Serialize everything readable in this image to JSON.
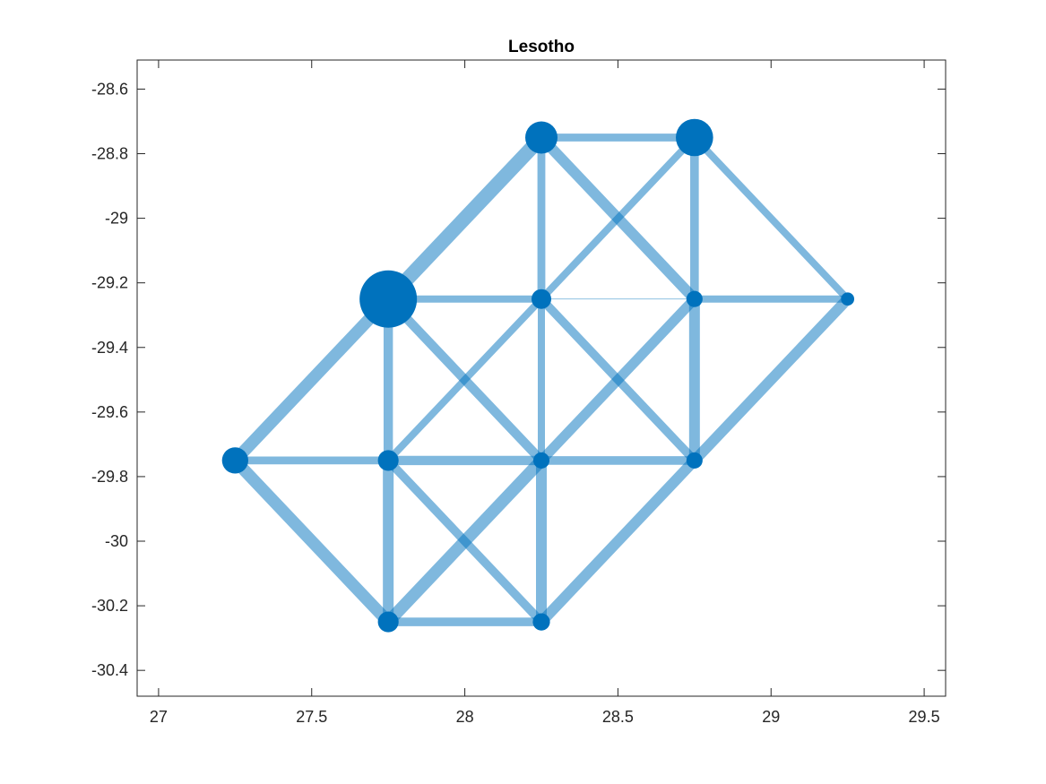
{
  "chart_data": {
    "type": "scatter",
    "title": "Lesotho",
    "xlabel": "",
    "ylabel": "",
    "xlim": [
      26.93,
      29.57
    ],
    "ylim": [
      -30.48,
      -28.51
    ],
    "x_ticks": [
      27,
      27.5,
      28,
      28.5,
      29,
      29.5
    ],
    "x_tick_labels": [
      "27",
      "27.5",
      "28",
      "28.5",
      "29",
      "29.5"
    ],
    "y_ticks": [
      -28.6,
      -28.8,
      -29,
      -29.2,
      -29.4,
      -29.6,
      -29.8,
      -30,
      -30.2,
      -30.4
    ],
    "y_tick_labels": [
      "-28.6",
      "-28.8",
      "-29",
      "-29.2",
      "-29.4",
      "-29.6",
      "-29.8",
      "-30",
      "-30.2",
      "-30.4"
    ],
    "grid": false,
    "colors": {
      "node": "#0072BD",
      "edge": "#0072BD",
      "edge_opacity": 0.5,
      "axis": "#262626"
    },
    "nodes": [
      {
        "x": 28.25,
        "y": -28.75,
        "weight": 0.5
      },
      {
        "x": 28.75,
        "y": -28.75,
        "weight": 0.6
      },
      {
        "x": 27.75,
        "y": -29.25,
        "weight": 1.0
      },
      {
        "x": 28.25,
        "y": -29.25,
        "weight": 0.25
      },
      {
        "x": 28.75,
        "y": -29.25,
        "weight": 0.18
      },
      {
        "x": 29.25,
        "y": -29.25,
        "weight": 0.12
      },
      {
        "x": 27.25,
        "y": -29.75,
        "weight": 0.38
      },
      {
        "x": 27.75,
        "y": -29.75,
        "weight": 0.27
      },
      {
        "x": 28.25,
        "y": -29.75,
        "weight": 0.18
      },
      {
        "x": 28.75,
        "y": -29.75,
        "weight": 0.18
      },
      {
        "x": 27.75,
        "y": -30.25,
        "weight": 0.27
      },
      {
        "x": 28.25,
        "y": -30.25,
        "weight": 0.2
      }
    ],
    "edges": [
      {
        "from": [
          28.25,
          -28.75
        ],
        "to": [
          28.75,
          -28.75
        ],
        "weight": 0.55
      },
      {
        "from": [
          27.75,
          -29.25
        ],
        "to": [
          28.25,
          -28.75
        ],
        "weight": 1.0
      },
      {
        "from": [
          28.25,
          -28.75
        ],
        "to": [
          28.25,
          -29.25
        ],
        "weight": 0.55
      },
      {
        "from": [
          28.25,
          -28.75
        ],
        "to": [
          28.75,
          -29.25
        ],
        "weight": 0.75
      },
      {
        "from": [
          28.75,
          -28.75
        ],
        "to": [
          28.25,
          -29.25
        ],
        "weight": 0.5
      },
      {
        "from": [
          28.75,
          -28.75
        ],
        "to": [
          28.75,
          -29.25
        ],
        "weight": 0.6
      },
      {
        "from": [
          28.75,
          -28.75
        ],
        "to": [
          29.25,
          -29.25
        ],
        "weight": 0.5
      },
      {
        "from": [
          27.75,
          -29.25
        ],
        "to": [
          28.25,
          -29.25
        ],
        "weight": 0.5
      },
      {
        "from": [
          28.25,
          -29.25
        ],
        "to": [
          28.75,
          -29.25
        ],
        "weight": 0.05
      },
      {
        "from": [
          28.75,
          -29.25
        ],
        "to": [
          29.25,
          -29.25
        ],
        "weight": 0.5
      },
      {
        "from": [
          27.75,
          -29.25
        ],
        "to": [
          27.25,
          -29.75
        ],
        "weight": 0.85
      },
      {
        "from": [
          27.75,
          -29.25
        ],
        "to": [
          27.75,
          -29.75
        ],
        "weight": 0.65
      },
      {
        "from": [
          27.75,
          -29.25
        ],
        "to": [
          28.25,
          -29.75
        ],
        "weight": 0.65
      },
      {
        "from": [
          28.25,
          -29.25
        ],
        "to": [
          27.75,
          -29.75
        ],
        "weight": 0.5
      },
      {
        "from": [
          28.25,
          -29.25
        ],
        "to": [
          28.25,
          -29.75
        ],
        "weight": 0.5
      },
      {
        "from": [
          28.25,
          -29.25
        ],
        "to": [
          28.75,
          -29.75
        ],
        "weight": 0.6
      },
      {
        "from": [
          28.75,
          -29.25
        ],
        "to": [
          28.25,
          -29.75
        ],
        "weight": 0.7
      },
      {
        "from": [
          28.75,
          -29.25
        ],
        "to": [
          28.75,
          -29.75
        ],
        "weight": 0.75
      },
      {
        "from": [
          29.25,
          -29.25
        ],
        "to": [
          28.75,
          -29.75
        ],
        "weight": 0.75
      },
      {
        "from": [
          27.25,
          -29.75
        ],
        "to": [
          27.75,
          -29.75
        ],
        "weight": 0.55
      },
      {
        "from": [
          27.75,
          -29.75
        ],
        "to": [
          28.25,
          -29.75
        ],
        "weight": 0.65
      },
      {
        "from": [
          28.25,
          -29.75
        ],
        "to": [
          28.75,
          -29.75
        ],
        "weight": 0.6
      },
      {
        "from": [
          27.25,
          -29.75
        ],
        "to": [
          27.75,
          -30.25
        ],
        "weight": 0.85
      },
      {
        "from": [
          27.75,
          -29.75
        ],
        "to": [
          27.75,
          -30.25
        ],
        "weight": 0.75
      },
      {
        "from": [
          27.75,
          -29.75
        ],
        "to": [
          28.25,
          -30.25
        ],
        "weight": 0.6
      },
      {
        "from": [
          28.25,
          -29.75
        ],
        "to": [
          27.75,
          -30.25
        ],
        "weight": 0.85
      },
      {
        "from": [
          28.25,
          -29.75
        ],
        "to": [
          28.25,
          -30.25
        ],
        "weight": 0.75
      },
      {
        "from": [
          28.75,
          -29.75
        ],
        "to": [
          28.25,
          -30.25
        ],
        "weight": 0.75
      },
      {
        "from": [
          27.75,
          -30.25
        ],
        "to": [
          28.25,
          -30.25
        ],
        "weight": 0.6
      }
    ]
  }
}
